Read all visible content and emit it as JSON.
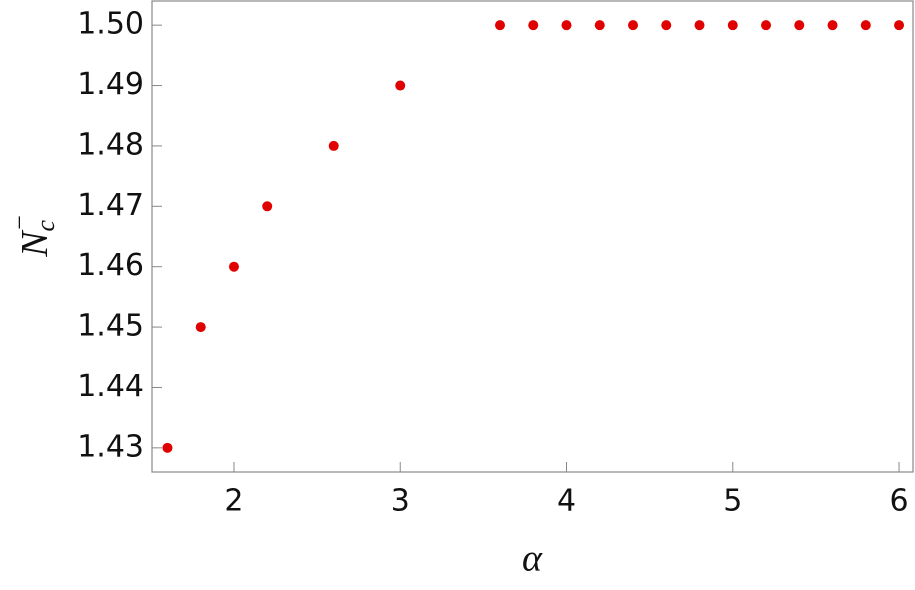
{
  "chart_data": {
    "type": "scatter",
    "xlabel": "α",
    "ylabel": {
      "base": "N",
      "sub": "c",
      "sup": "−"
    },
    "series": [
      {
        "color": "#e00000",
        "x": [
          1.6,
          1.8,
          2.0,
          2.2,
          2.6,
          3.0,
          3.6,
          3.8,
          4.0,
          4.2,
          4.4,
          4.6,
          4.8,
          5.0,
          5.2,
          5.4,
          5.6,
          5.8,
          6.0
        ],
        "values": [
          1.43,
          1.45,
          1.46,
          1.47,
          1.48,
          1.49,
          1.5,
          1.5,
          1.5,
          1.5,
          1.5,
          1.5,
          1.5,
          1.5,
          1.5,
          1.5,
          1.5,
          1.5,
          1.5
        ]
      }
    ],
    "xlim": [
      1.507,
      6.084
    ],
    "ylim": [
      1.426,
      1.504
    ],
    "xticks": [
      2,
      3,
      4,
      5,
      6
    ],
    "yticks": [
      1.43,
      1.44,
      1.45,
      1.46,
      1.47,
      1.48,
      1.49,
      {
        "value": 1.5,
        "label": "1.50"
      }
    ]
  }
}
